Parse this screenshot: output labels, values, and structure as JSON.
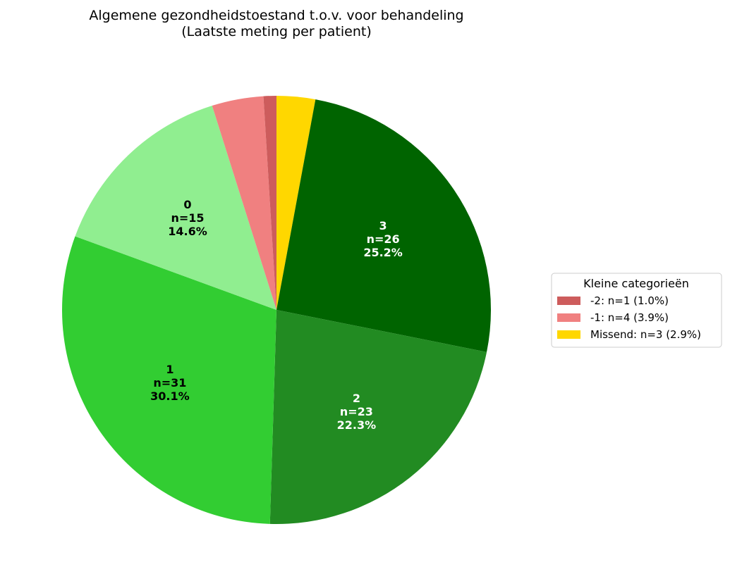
{
  "chart_data": {
    "type": "pie",
    "title": "Algemene gezondheidstoestand t.o.v. voor behandeling",
    "subtitle": "(Laatste  meting per patient)",
    "slices": [
      {
        "label": "Missend",
        "n": 3,
        "percent": 2.9,
        "color": "#FFD700"
      },
      {
        "label": "3",
        "n": 26,
        "percent": 25.2,
        "color": "#006400",
        "text_color": "#ffffff",
        "line2": "n=26",
        "line3": "25.2%"
      },
      {
        "label": "2",
        "n": 23,
        "percent": 22.3,
        "color": "#228B22",
        "text_color": "#ffffff",
        "line2": "n=23",
        "line3": "22.3%"
      },
      {
        "label": "1",
        "n": 31,
        "percent": 30.1,
        "color": "#32CD32",
        "text_color": "#000000",
        "line2": "n=31",
        "line3": "30.1%"
      },
      {
        "label": "0",
        "n": 15,
        "percent": 14.6,
        "color": "#90EE90",
        "text_color": "#000000",
        "line2": "n=15",
        "line3": "14.6%"
      },
      {
        "label": "-1",
        "n": 4,
        "percent": 3.9,
        "color": "#F08080"
      },
      {
        "label": "-2",
        "n": 1,
        "percent": 1.0,
        "color": "#CD5C5C"
      }
    ],
    "legend": {
      "title": "Kleine categorieën",
      "placement": "right",
      "entries": [
        {
          "text": "-2: n=1 (1.0%)",
          "color": "#CD5C5C"
        },
        {
          "text": "-1: n=4 (3.9%)",
          "color": "#F08080"
        },
        {
          "text": "Missend: n=3 (2.9%)",
          "color": "#FFD700"
        }
      ]
    }
  }
}
